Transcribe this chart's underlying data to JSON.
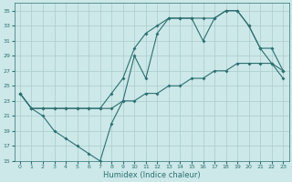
{
  "background_color": "#cce8e8",
  "grid_color": "#aacccc",
  "line_color": "#2d7070",
  "xlabel": "Humidex (Indice chaleur)",
  "ylim": [
    15,
    36
  ],
  "xlim": [
    -0.5,
    23.5
  ],
  "yticks": [
    15,
    17,
    19,
    21,
    23,
    25,
    27,
    29,
    31,
    33,
    35
  ],
  "xticks": [
    0,
    1,
    2,
    3,
    4,
    5,
    6,
    7,
    8,
    9,
    10,
    11,
    12,
    13,
    14,
    15,
    16,
    17,
    18,
    19,
    20,
    21,
    22,
    23
  ],
  "line1_x": [
    0,
    1,
    2,
    3,
    4,
    5,
    6,
    7,
    8,
    9,
    10,
    11,
    12,
    13,
    14,
    15,
    16,
    17,
    18,
    19,
    20,
    21,
    22,
    23
  ],
  "line1_y": [
    24,
    22,
    22,
    22,
    22,
    22,
    22,
    22,
    22,
    23,
    23,
    24,
    24,
    25,
    25,
    26,
    26,
    27,
    27,
    28,
    28,
    28,
    28,
    26
  ],
  "line2_x": [
    0,
    1,
    2,
    3,
    4,
    5,
    6,
    7,
    8,
    9,
    10,
    11,
    12,
    13,
    14,
    15,
    16,
    17,
    18,
    19,
    20,
    21,
    22,
    23
  ],
  "line2_y": [
    24,
    22,
    21,
    19,
    18,
    17,
    16,
    15,
    20,
    23,
    29,
    26,
    32,
    34,
    34,
    34,
    31,
    34,
    35,
    35,
    33,
    30,
    28,
    27
  ],
  "line3_x": [
    0,
    1,
    2,
    3,
    4,
    5,
    6,
    7,
    8,
    9,
    10,
    11,
    12,
    13,
    14,
    15,
    16,
    17,
    18,
    19,
    20,
    21,
    22,
    23
  ],
  "line3_y": [
    24,
    22,
    22,
    22,
    22,
    22,
    22,
    22,
    24,
    26,
    30,
    32,
    33,
    34,
    34,
    34,
    34,
    34,
    35,
    35,
    33,
    30,
    30,
    27
  ]
}
